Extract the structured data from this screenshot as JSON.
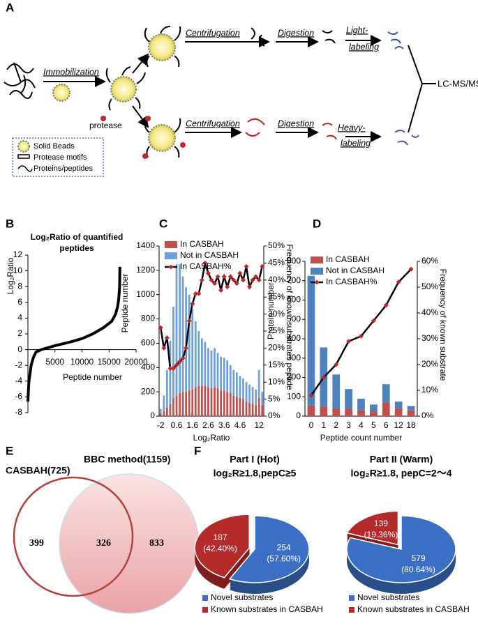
{
  "panel_labels": [
    "A",
    "B",
    "C",
    "D",
    "E",
    "F"
  ],
  "diagram": {
    "immobilization": "Immobilization",
    "protease": "protease",
    "centrifugation": [
      "Centrifugation",
      "Centrifugation"
    ],
    "digestion": [
      "Digestion",
      "Digestion"
    ],
    "light_labeling": [
      "Light-",
      "labeling"
    ],
    "heavy_labeling": [
      "Heavy-",
      "labeling"
    ],
    "output": "LC-MS/MS",
    "legend": [
      "Solid Beads",
      "Protease motifs",
      "Proteins/peptides"
    ]
  },
  "venn": {
    "sets": [
      "CASBAH(725)",
      "BBC method(1159)"
    ],
    "regions": [
      "399",
      "326",
      "833"
    ]
  },
  "chart_data": [
    {
      "type": "line",
      "title": "Log₂Ratio of quantified peptides",
      "xlabel": "Peptide number",
      "ylabel": "Log₂Ratio",
      "color": "#000000",
      "x": [
        0,
        100,
        200,
        400,
        600,
        1000,
        1500,
        2500,
        5000,
        8000,
        10000,
        12000,
        14000,
        15500,
        16200,
        16600,
        16800,
        16950,
        17000
      ],
      "values": [
        -6.6,
        -5,
        -4,
        -3,
        -2,
        -1,
        -0.3,
        0,
        0.5,
        1,
        1.4,
        2,
        2.8,
        3.6,
        4.5,
        5.5,
        6.5,
        8,
        10.5
      ],
      "xlim": [
        0,
        20000
      ],
      "xticks": [
        5000,
        10000,
        15000,
        20000
      ],
      "ylim": [
        -8,
        12
      ],
      "yticks": [
        -8,
        -6,
        -4,
        -2,
        0,
        2,
        4,
        6,
        8,
        10,
        12
      ]
    },
    {
      "type": "bar",
      "stacked": true,
      "xlabel": "Log₂Ratio",
      "ylabel": "Peptide number",
      "y2label": "Frequency of known substrates peptide",
      "categories": [
        "-2",
        null,
        null,
        null,
        null,
        "0.6",
        null,
        null,
        null,
        null,
        "1.6",
        null,
        null,
        null,
        null,
        "2.6",
        null,
        null,
        null,
        null,
        "3.6",
        null,
        null,
        null,
        null,
        "4.6",
        null,
        null,
        null,
        null,
        null,
        "12",
        null
      ],
      "series": [
        {
          "name": "In CASBAH",
          "color": "#c0504d",
          "values": [
            20,
            40,
            70,
            100,
            150,
            170,
            190,
            200,
            200,
            210,
            220,
            240,
            250,
            250,
            250,
            240,
            230,
            240,
            230,
            210,
            210,
            200,
            190,
            170,
            160,
            150,
            140,
            120,
            110,
            100,
            90,
            150,
            90
          ]
        },
        {
          "name": "Not in CASBAH",
          "color": "#6f9fd8",
          "values": [
            40,
            130,
            310,
            520,
            750,
            1080,
            1060,
            950,
            860,
            790,
            660,
            540,
            450,
            390,
            360,
            320,
            310,
            320,
            290,
            280,
            270,
            260,
            230,
            210,
            200,
            180,
            170,
            160,
            150,
            140,
            130,
            230,
            110
          ]
        },
        {
          "name": "In CASBAH%",
          "type": "line",
          "axis": "y2",
          "color": "#000000",
          "marker_color": "#c0272d",
          "values": [
            26,
            20,
            23,
            14,
            14,
            15,
            16,
            17,
            20,
            28,
            33,
            36,
            36,
            40,
            45,
            42,
            40,
            39,
            41,
            37,
            41,
            38,
            41,
            40,
            39,
            42,
            40,
            44,
            38,
            40,
            41,
            40,
            44
          ]
        }
      ],
      "ylim": [
        0,
        1400
      ],
      "yticks": [
        0,
        200,
        400,
        600,
        800,
        1000,
        1200,
        1400
      ],
      "y2lim": [
        0,
        50
      ],
      "y2ticks": [
        {
          "value": 0,
          "label": "0%"
        },
        {
          "value": 5,
          "label": "5%"
        },
        {
          "value": 10,
          "label": "10%"
        },
        {
          "value": 15,
          "label": "15%"
        },
        {
          "value": 20,
          "label": "20%"
        },
        {
          "value": 25,
          "label": "25%"
        },
        {
          "value": 30,
          "label": "30%"
        },
        {
          "value": 35,
          "label": "35%"
        },
        {
          "value": 40,
          "label": "40%"
        },
        {
          "value": 45,
          "label": "45%"
        },
        {
          "value": 50,
          "label": "50%"
        }
      ]
    },
    {
      "type": "bar",
      "stacked": true,
      "xlabel": "Peptide count number",
      "ylabel": "Protein number",
      "y2label": "Frequency of known substrate",
      "categories": [
        "0",
        "1",
        "2",
        "3",
        "4",
        "5",
        "6",
        "12",
        "18"
      ],
      "series": [
        {
          "name": "In CASBAH",
          "color": "#c0504d",
          "values": [
            55,
            50,
            40,
            40,
            30,
            25,
            70,
            40,
            30
          ]
        },
        {
          "name": "Not in CASBAH",
          "color": "#4f81bd",
          "values": [
            670,
            305,
            175,
            100,
            60,
            35,
            95,
            35,
            22
          ]
        },
        {
          "name": "In CASBAH%",
          "type": "line",
          "axis": "y2",
          "color": "#000000",
          "marker_color": "#c0272d",
          "values": [
            8,
            15,
            20,
            29,
            31,
            37,
            43,
            52,
            57
          ]
        }
      ],
      "ylim": [
        0,
        800
      ],
      "yticks": [
        0,
        100,
        200,
        300,
        400,
        500,
        600,
        700,
        800
      ],
      "y2lim": [
        0,
        60
      ],
      "y2ticks": [
        {
          "value": 0,
          "label": "0%"
        },
        {
          "value": 10,
          "label": "10%"
        },
        {
          "value": 20,
          "label": "20%"
        },
        {
          "value": 30,
          "label": "30%"
        },
        {
          "value": 40,
          "label": "40%"
        },
        {
          "value": 50,
          "label": "50%"
        },
        {
          "value": 60,
          "label": "60%"
        }
      ]
    },
    {
      "type": "pie",
      "title": "Part I (Hot)",
      "subtitle": "log₂R≥1.8,pepC≥5",
      "labels": [
        "Novel substrates",
        "Known substrates in CASBAH"
      ],
      "colors": [
        "#3a6fc4",
        "#b52a2a"
      ],
      "values": [
        254,
        187
      ],
      "percentages": [
        57.6,
        42.4
      ],
      "percentage_labels": [
        "(57.60%)",
        "(42.40%)"
      ]
    },
    {
      "type": "pie",
      "title": "Part II (Warm)",
      "subtitle": "log₂R≥1.8, pepC=2～4",
      "labels": [
        "Novel substrates",
        "Known substrates in CASBAH"
      ],
      "colors": [
        "#3a6fc4",
        "#b52a2a"
      ],
      "values": [
        579,
        139
      ],
      "percentages": [
        80.64,
        19.36
      ],
      "percentage_labels": [
        "(80.64%)",
        "(19.36%)"
      ]
    }
  ]
}
